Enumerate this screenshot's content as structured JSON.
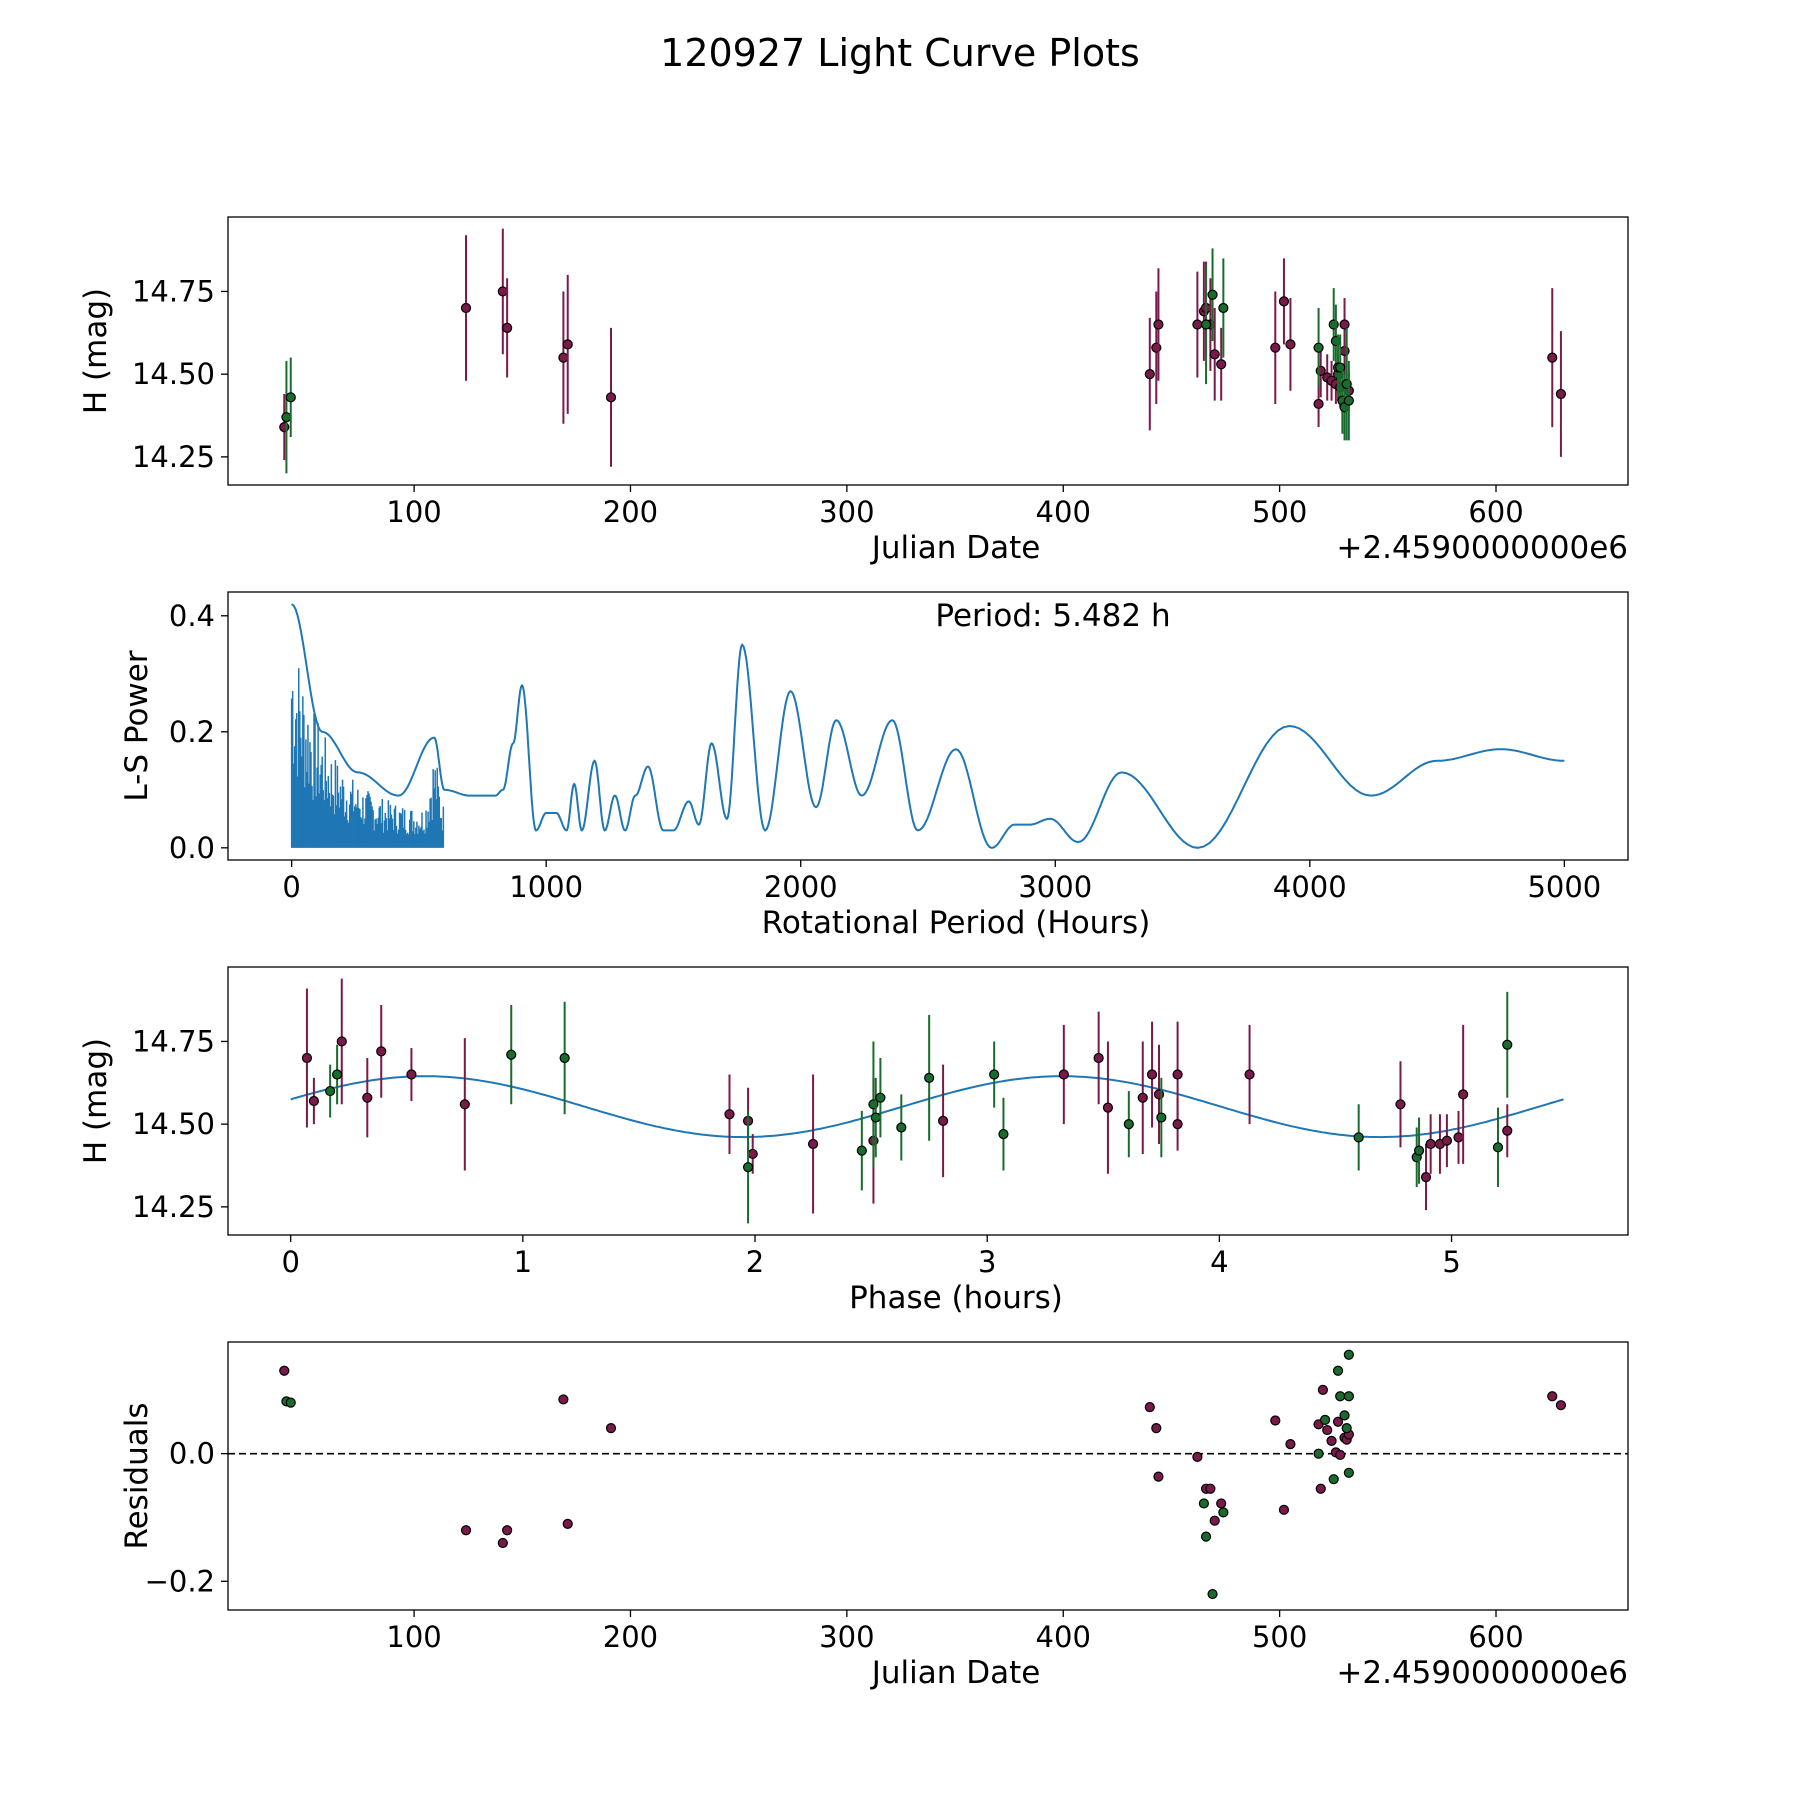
{
  "figure_title": "120927 Light Curve Plots",
  "colors": {
    "r": "#7a1a4a",
    "g": "#1a6b2e",
    "curve": "#1f77b4",
    "edge": "#000000"
  },
  "chart_data": [
    {
      "id": "lc",
      "type": "scatter",
      "xlabel": "Julian Date",
      "ylabel": "H (mag)",
      "offset_text": "+2.4590000000e6",
      "xlim": [
        14,
        661
      ],
      "ylim": [
        14.165,
        14.975
      ],
      "xticks": [
        100,
        200,
        300,
        400,
        500,
        600
      ],
      "xtick_labels": [
        "100",
        "200",
        "300",
        "400",
        "500",
        "600"
      ],
      "yticks": [
        14.25,
        14.5,
        14.75
      ],
      "ytick_labels": [
        "14.25",
        "14.50",
        "14.75"
      ],
      "series": [
        {
          "name": "r",
          "x": [
            40,
            124,
            141,
            143,
            169,
            171,
            191,
            440,
            443,
            444,
            462,
            465,
            466,
            468,
            470,
            473,
            498,
            502,
            505,
            518,
            519,
            522,
            524,
            526,
            527,
            528,
            530,
            530,
            532,
            626,
            630
          ],
          "y": [
            14.34,
            14.7,
            14.75,
            14.64,
            14.55,
            14.59,
            14.43,
            14.5,
            14.58,
            14.65,
            14.65,
            14.69,
            14.7,
            14.65,
            14.56,
            14.53,
            14.58,
            14.72,
            14.59,
            14.41,
            14.51,
            14.49,
            14.48,
            14.47,
            14.5,
            14.46,
            14.57,
            14.65,
            14.45,
            14.55,
            14.44
          ],
          "err": [
            0.1,
            0.22,
            0.19,
            0.15,
            0.2,
            0.21,
            0.21,
            0.17,
            0.17,
            0.17,
            0.16,
            0.15,
            0.14,
            0.14,
            0.14,
            0.11,
            0.17,
            0.13,
            0.14,
            0.07,
            0.08,
            0.07,
            0.06,
            0.06,
            0.06,
            0.06,
            0.08,
            0.08,
            0.06,
            0.21,
            0.19
          ]
        },
        {
          "name": "g",
          "x": [
            41,
            43,
            466,
            469,
            474,
            518,
            525,
            526,
            527,
            528,
            529,
            530,
            531,
            532
          ],
          "y": [
            14.37,
            14.43,
            14.65,
            14.74,
            14.7,
            14.58,
            14.65,
            14.6,
            14.52,
            14.52,
            14.42,
            14.4,
            14.47,
            14.42
          ],
          "err": [
            0.17,
            0.12,
            0.18,
            0.14,
            0.15,
            0.12,
            0.11,
            0.11,
            0.1,
            0.1,
            0.1,
            0.1,
            0.17,
            0.12
          ]
        }
      ]
    },
    {
      "id": "periodogram",
      "type": "line",
      "xlabel": "Rotational Period (Hours)",
      "ylabel": "L-S Power",
      "annotation": "Period: 5.482 h",
      "xlim": [
        -250,
        5250
      ],
      "ylim": [
        -0.021,
        0.441
      ],
      "xticks": [
        0,
        1000,
        2000,
        3000,
        4000,
        5000
      ],
      "xtick_labels": [
        "0",
        "1000",
        "2000",
        "3000",
        "4000",
        "5000"
      ],
      "yticks": [
        0.0,
        0.2,
        0.4
      ],
      "ytick_labels": [
        "0.0",
        "0.2",
        "0.4"
      ],
      "series": [
        {
          "name": "L-S Power",
          "x": [
            0,
            120,
            260,
            420,
            560,
            600,
            700,
            800,
            830,
            870,
            905,
            960,
            1000,
            1040,
            1080,
            1110,
            1140,
            1190,
            1230,
            1270,
            1310,
            1350,
            1400,
            1460,
            1500,
            1560,
            1600,
            1650,
            1710,
            1770,
            1860,
            1960,
            2060,
            2140,
            2240,
            2360,
            2460,
            2610,
            2750,
            2840,
            2900,
            2980,
            3090,
            3260,
            3560,
            3920,
            4240,
            4500,
            4750,
            5000
          ],
          "y": [
            0.42,
            0.2,
            0.13,
            0.09,
            0.19,
            0.1,
            0.09,
            0.09,
            0.1,
            0.18,
            0.28,
            0.03,
            0.06,
            0.06,
            0.03,
            0.11,
            0.03,
            0.15,
            0.03,
            0.09,
            0.03,
            0.09,
            0.14,
            0.03,
            0.03,
            0.08,
            0.04,
            0.18,
            0.05,
            0.35,
            0.03,
            0.27,
            0.07,
            0.22,
            0.09,
            0.22,
            0.03,
            0.17,
            0.0,
            0.04,
            0.04,
            0.05,
            0.01,
            0.13,
            0.0,
            0.21,
            0.09,
            0.15,
            0.17,
            0.15
          ]
        }
      ]
    },
    {
      "id": "phase",
      "type": "scatter",
      "xlabel": "Phase (hours)",
      "ylabel": "H (mag)",
      "xlim": [
        -0.27,
        5.76
      ],
      "ylim": [
        14.165,
        14.975
      ],
      "xticks": [
        0,
        1,
        2,
        3,
        4,
        5
      ],
      "xtick_labels": [
        "0",
        "1",
        "2",
        "3",
        "4",
        "5"
      ],
      "yticks": [
        14.25,
        14.5,
        14.75
      ],
      "ytick_labels": [
        "14.25",
        "14.50",
        "14.75"
      ],
      "model": {
        "mean": 14.553,
        "amplitude": 0.092,
        "period": 2.741,
        "phase0": 0.58,
        "xmin": 0,
        "xmax": 5.482
      },
      "series": [
        {
          "name": "r",
          "x": [
            0.07,
            0.1,
            0.22,
            0.33,
            0.39,
            0.52,
            0.75,
            1.89,
            1.97,
            1.99,
            2.25,
            2.51,
            2.81,
            3.33,
            3.48,
            3.52,
            3.67,
            3.71,
            3.74,
            3.82,
            3.82,
            4.13,
            4.78,
            4.89,
            4.91,
            4.95,
            4.98,
            5.03,
            5.05,
            5.24
          ],
          "y": [
            14.7,
            14.57,
            14.75,
            14.58,
            14.72,
            14.65,
            14.56,
            14.53,
            14.51,
            14.41,
            14.44,
            14.45,
            14.51,
            14.65,
            14.7,
            14.55,
            14.58,
            14.65,
            14.59,
            14.65,
            14.5,
            14.65,
            14.56,
            14.34,
            14.44,
            14.44,
            14.45,
            14.46,
            14.59,
            14.48
          ],
          "err": [
            0.21,
            0.07,
            0.19,
            0.12,
            0.14,
            0.08,
            0.2,
            0.12,
            0.1,
            0.06,
            0.21,
            0.19,
            0.17,
            0.15,
            0.14,
            0.2,
            0.17,
            0.16,
            0.15,
            0.16,
            0.08,
            0.15,
            0.13,
            0.1,
            0.09,
            0.09,
            0.08,
            0.08,
            0.21,
            0.08
          ]
        },
        {
          "name": "g",
          "x": [
            0.17,
            0.2,
            0.95,
            1.18,
            1.97,
            2.46,
            2.51,
            2.52,
            2.54,
            2.63,
            2.75,
            3.03,
            3.07,
            3.61,
            3.75,
            4.6,
            4.85,
            4.86,
            5.2,
            5.24
          ],
          "y": [
            14.6,
            14.65,
            14.71,
            14.7,
            14.37,
            14.42,
            14.56,
            14.52,
            14.58,
            14.49,
            14.64,
            14.65,
            14.47,
            14.5,
            14.52,
            14.46,
            14.4,
            14.42,
            14.43,
            14.74
          ],
          "err": [
            0.08,
            0.09,
            0.15,
            0.17,
            0.17,
            0.12,
            0.19,
            0.12,
            0.12,
            0.1,
            0.19,
            0.1,
            0.11,
            0.1,
            0.12,
            0.1,
            0.09,
            0.1,
            0.12,
            0.16
          ]
        }
      ]
    },
    {
      "id": "residuals",
      "type": "scatter",
      "xlabel": "Julian Date",
      "ylabel": "Residuals",
      "offset_text": "+2.4590000000e6",
      "xlim": [
        14,
        661
      ],
      "ylim": [
        -0.245,
        0.175
      ],
      "xticks": [
        100,
        200,
        300,
        400,
        500,
        600
      ],
      "xtick_labels": [
        "100",
        "200",
        "300",
        "400",
        "500",
        "600"
      ],
      "yticks": [
        -0.2,
        0.0
      ],
      "ytick_labels": [
        "−0.2",
        "0.0"
      ],
      "zero_line": 0.0,
      "series": [
        {
          "name": "r",
          "x": [
            40,
            124,
            141,
            143,
            169,
            171,
            191,
            440,
            443,
            444,
            462,
            466,
            468,
            470,
            473,
            498,
            502,
            505,
            518,
            519,
            520,
            522,
            524,
            526,
            527,
            528,
            530,
            531,
            532,
            626,
            630
          ],
          "y": [
            0.13,
            -0.12,
            -0.14,
            -0.12,
            0.085,
            -0.11,
            0.04,
            0.073,
            0.04,
            -0.036,
            -0.005,
            -0.055,
            -0.055,
            -0.105,
            -0.078,
            0.052,
            -0.088,
            0.015,
            0.046,
            -0.055,
            0.1,
            0.037,
            0.02,
            0.002,
            0.05,
            -0.002,
            0.025,
            0.022,
            0.03,
            0.09,
            0.076
          ],
          "err": []
        },
        {
          "name": "g",
          "x": [
            41,
            43,
            465,
            466,
            469,
            474,
            518,
            521,
            525,
            527,
            528,
            530,
            531,
            532
          ],
          "y": [
            0.082,
            0.08,
            -0.078,
            -0.13,
            -0.22,
            -0.092,
            0.0,
            0.053,
            -0.04,
            0.13,
            0.09,
            0.06,
            0.04,
            -0.03
          ],
          "err": []
        },
        {
          "name": "g-extra",
          "x": [
            532,
            532
          ],
          "y": [
            0.155,
            0.09
          ],
          "err": []
        }
      ]
    }
  ]
}
